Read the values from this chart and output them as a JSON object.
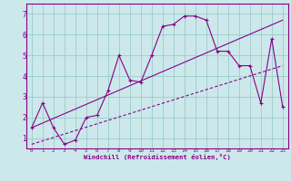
{
  "xlabel": "Windchill (Refroidissement éolien,°C)",
  "bg_color": "#cce8ea",
  "line_color": "#880088",
  "grid_color": "#99cccc",
  "xlim": [
    -0.5,
    23.5
  ],
  "ylim": [
    0.5,
    7.5
  ],
  "xticks": [
    0,
    1,
    2,
    3,
    4,
    5,
    6,
    7,
    8,
    9,
    10,
    11,
    12,
    13,
    14,
    15,
    16,
    17,
    18,
    19,
    20,
    21,
    22,
    23
  ],
  "yticks": [
    1,
    2,
    3,
    4,
    5,
    6,
    7
  ],
  "line1_x": [
    0,
    1,
    2,
    3,
    4,
    5,
    6,
    7,
    8,
    9,
    10,
    11,
    12,
    13,
    14,
    15,
    16,
    17,
    18,
    19,
    20,
    21,
    22,
    23
  ],
  "line1_y": [
    1.5,
    2.7,
    1.5,
    0.7,
    0.9,
    2.0,
    2.1,
    3.3,
    5.0,
    3.8,
    3.7,
    5.0,
    6.4,
    6.5,
    6.9,
    6.9,
    6.7,
    5.2,
    5.2,
    4.5,
    4.5,
    2.7,
    5.8,
    2.5
  ],
  "line2_x": [
    0,
    23
  ],
  "line2_y": [
    1.5,
    6.7
  ],
  "line3_x": [
    0,
    23
  ],
  "line3_y": [
    0.7,
    4.5
  ]
}
